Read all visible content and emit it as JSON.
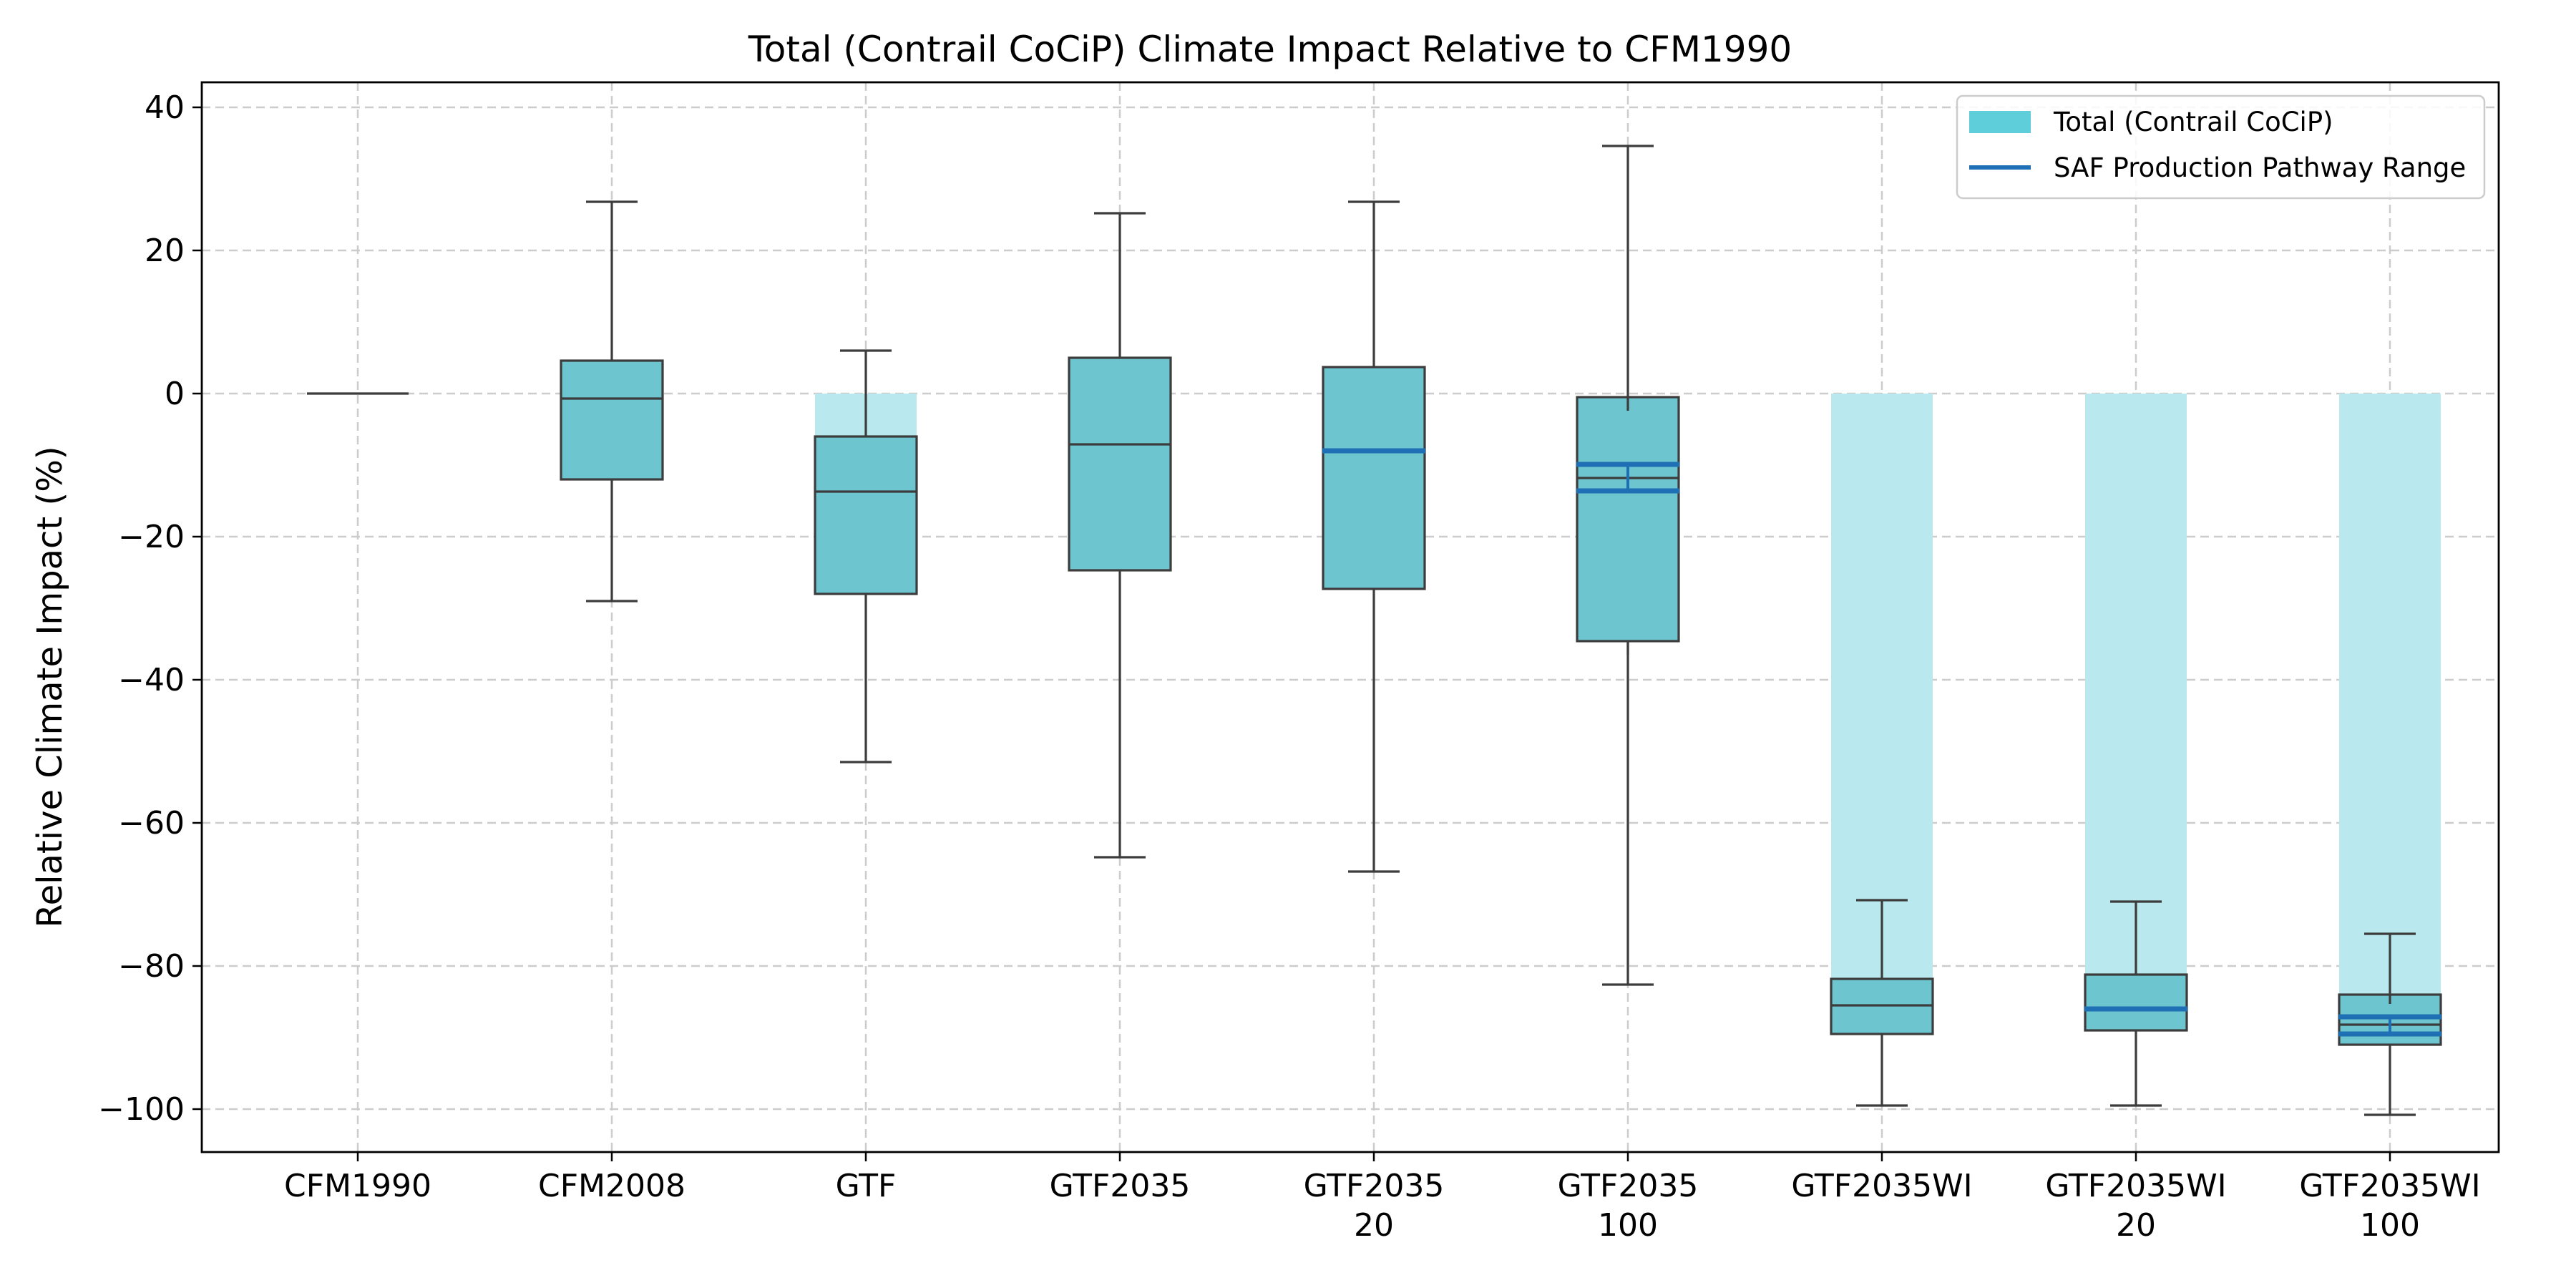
{
  "chart_data": {
    "type": "box",
    "title": "Total (Contrail CoCiP) Climate Impact Relative to CFM1990",
    "xlabel": "",
    "ylabel": "Relative Climate Impact (%)",
    "ylim": [
      -106,
      43.5
    ],
    "yticks": [
      {
        "value": 40,
        "label": "40"
      },
      {
        "value": 20,
        "label": "20"
      },
      {
        "value": 0,
        "label": "0"
      },
      {
        "value": -20,
        "label": "−20"
      },
      {
        "value": -40,
        "label": "−40"
      },
      {
        "value": -60,
        "label": "−60"
      },
      {
        "value": -80,
        "label": "−80"
      },
      {
        "value": -100,
        "label": "−100"
      }
    ],
    "grid": true,
    "legend_position": "top-right",
    "legend": [
      {
        "label": "Total (Contrail CoCiP)",
        "kind": "patch",
        "color": "#5ecfda"
      },
      {
        "label": "SAF Production Pathway Range",
        "kind": "line",
        "color": "#1f6fb4"
      }
    ],
    "colors": {
      "box_fill": "#6dc5cf",
      "total_bar": "#b9e9ee",
      "box_edge": "#3c3c3c",
      "pathway": "#1f6fb4",
      "legend_patch": "#5ecfda"
    },
    "categories": [
      {
        "name": "CFM1990",
        "label_lines": [
          "CFM1990"
        ],
        "total": 0,
        "whisker_low": 0,
        "q1": 0,
        "median": 0,
        "q3": 0,
        "whisker_high": 0,
        "pathway": []
      },
      {
        "name": "CFM2008",
        "label_lines": [
          "CFM2008"
        ],
        "total": null,
        "whisker_low": -29,
        "q1": -12,
        "median": -0.7,
        "q3": 4.6,
        "whisker_high": 26.8,
        "pathway": []
      },
      {
        "name": "GTF",
        "label_lines": [
          "GTF"
        ],
        "total": -6,
        "whisker_low": -51.5,
        "q1": -28,
        "median": -13.7,
        "q3": -6,
        "whisker_high": 6,
        "pathway": []
      },
      {
        "name": "GTF2035",
        "label_lines": [
          "GTF2035"
        ],
        "total": null,
        "whisker_low": -64.8,
        "q1": -24.7,
        "median": -7.1,
        "q3": 5,
        "whisker_high": 25.2,
        "pathway": []
      },
      {
        "name": "GTF2035 20",
        "label_lines": [
          "GTF2035",
          "20"
        ],
        "total": null,
        "whisker_low": -66.8,
        "q1": -27.3,
        "median": -8,
        "q3": 3.7,
        "whisker_high": 26.8,
        "pathway": [
          -8
        ]
      },
      {
        "name": "GTF2035 100",
        "label_lines": [
          "GTF2035",
          "100"
        ],
        "total": null,
        "whisker_low": -82.6,
        "q1": -34.6,
        "median": -11.8,
        "q3": -0.5,
        "whisker_high": 34.6,
        "pathway": [
          -9.9,
          -13.6
        ],
        "extra_whisker_segments": [
          [
            -0.5,
            -2.4
          ],
          [
            -34.6,
            -36.5
          ]
        ]
      },
      {
        "name": "GTF2035WI",
        "label_lines": [
          "GTF2035WI"
        ],
        "total": -81.8,
        "whisker_low": -99.5,
        "q1": -89.5,
        "median": -85.5,
        "q3": -81.8,
        "whisker_high": -70.8,
        "pathway": []
      },
      {
        "name": "GTF2035WI 20",
        "label_lines": [
          "GTF2035WI",
          "20"
        ],
        "total": -81.2,
        "whisker_low": -99.5,
        "q1": -89,
        "median": -86,
        "q3": -81.2,
        "whisker_high": -71,
        "pathway": [
          -86
        ]
      },
      {
        "name": "GTF2035WI 100",
        "label_lines": [
          "GTF2035WI",
          "100"
        ],
        "total": -84,
        "whisker_low": -100.8,
        "q1": -91,
        "median": -88.2,
        "q3": -84,
        "whisker_high": -75.5,
        "pathway": [
          -87.1,
          -89.5
        ],
        "extra_whisker_segments": [
          [
            -84,
            -85.3
          ]
        ]
      }
    ]
  }
}
